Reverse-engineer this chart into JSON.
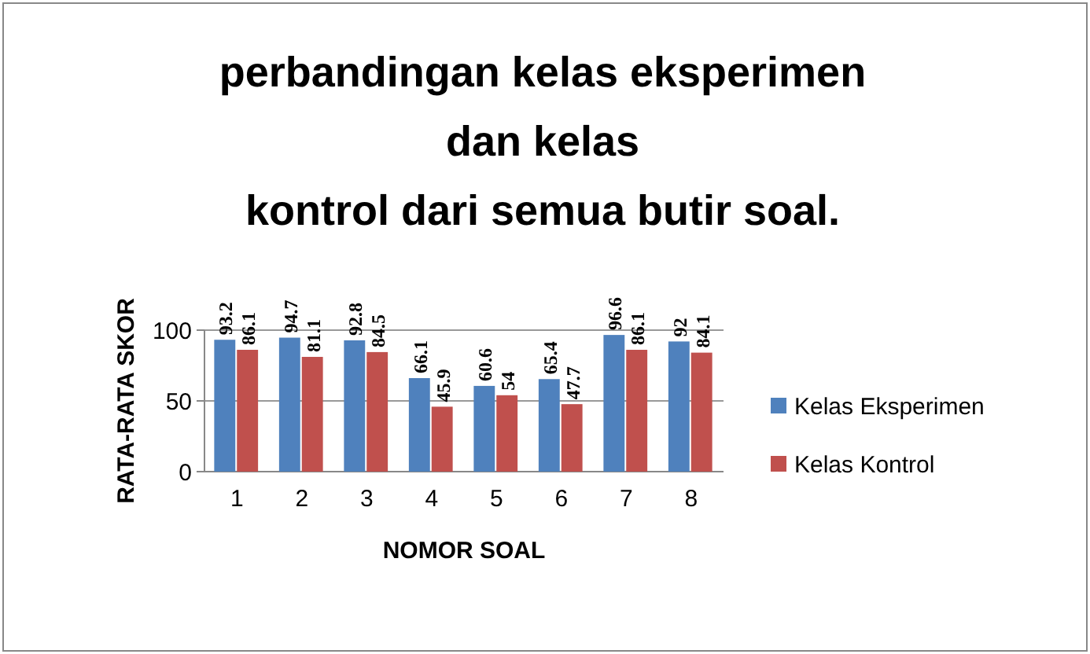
{
  "chart_data": {
    "type": "bar",
    "title": "perbandingan kelas eksperimen\ndan kelas\nkontrol dari semua butir soal.",
    "xlabel": "NOMOR SOAL",
    "ylabel": "RATA-RATA SKOR",
    "categories": [
      "1",
      "2",
      "3",
      "4",
      "5",
      "6",
      "7",
      "8"
    ],
    "series": [
      {
        "name": "Kelas Eksperimen",
        "color": "#4f81bd",
        "values": [
          93.2,
          94.7,
          92.8,
          66.1,
          60.6,
          65.4,
          96.6,
          92
        ]
      },
      {
        "name": "Kelas Kontrol",
        "color": "#c0504d",
        "values": [
          86.1,
          81.1,
          84.5,
          45.9,
          54,
          47.7,
          86.1,
          84.1
        ]
      }
    ],
    "ylim": [
      0,
      100
    ],
    "yticks": [
      0,
      50,
      100
    ],
    "grid": "y",
    "legend": "right",
    "data_labels": true
  }
}
